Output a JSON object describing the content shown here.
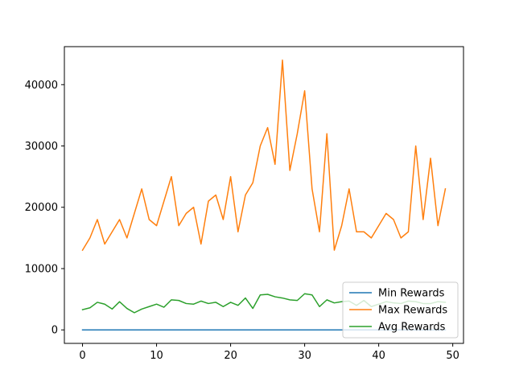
{
  "chart_data": {
    "type": "line",
    "title": "",
    "xlabel": "",
    "ylabel": "",
    "xlim": [
      -2.45,
      51.45
    ],
    "ylim": [
      -2200,
      46200
    ],
    "xticks": [
      0,
      10,
      20,
      30,
      40,
      50
    ],
    "yticks": [
      0,
      10000,
      20000,
      30000,
      40000
    ],
    "xtick_labels": [
      "0",
      "10",
      "20",
      "30",
      "40",
      "50"
    ],
    "ytick_labels": [
      "0",
      "10000",
      "20000",
      "30000",
      "40000"
    ],
    "legend_position": "lower-right",
    "x": [
      0,
      1,
      2,
      3,
      4,
      5,
      6,
      7,
      8,
      9,
      10,
      11,
      12,
      13,
      14,
      15,
      16,
      17,
      18,
      19,
      20,
      21,
      22,
      23,
      24,
      25,
      26,
      27,
      28,
      29,
      30,
      31,
      32,
      33,
      34,
      35,
      36,
      37,
      38,
      39,
      40,
      41,
      42,
      43,
      44,
      45,
      46,
      47,
      48,
      49
    ],
    "series": [
      {
        "name": "Min Rewards",
        "color": "#1f77b4",
        "values": [
          0,
          0,
          0,
          0,
          0,
          0,
          0,
          0,
          0,
          0,
          0,
          0,
          0,
          0,
          0,
          0,
          0,
          0,
          0,
          0,
          0,
          0,
          0,
          0,
          0,
          0,
          0,
          0,
          0,
          0,
          0,
          0,
          0,
          0,
          0,
          0,
          0,
          0,
          0,
          0,
          0,
          0,
          0,
          0,
          0,
          0,
          0,
          0,
          0,
          0
        ]
      },
      {
        "name": "Max Rewards",
        "color": "#ff7f0e",
        "values": [
          13000,
          15000,
          18000,
          14000,
          16000,
          18000,
          15000,
          19000,
          23000,
          18000,
          17000,
          21000,
          25000,
          17000,
          19000,
          20000,
          14000,
          21000,
          22000,
          18000,
          25000,
          16000,
          22000,
          24000,
          30000,
          33000,
          27000,
          44000,
          26000,
          32000,
          39000,
          23000,
          16000,
          32000,
          13000,
          17000,
          23000,
          16000,
          16000,
          15000,
          17000,
          19000,
          18000,
          15000,
          16000,
          30000,
          18000,
          28000,
          17000,
          23000
        ]
      },
      {
        "name": "Avg Rewards",
        "color": "#2ca02c",
        "values": [
          3300,
          3600,
          4500,
          4200,
          3400,
          4600,
          3500,
          2800,
          3400,
          3800,
          4200,
          3700,
          4900,
          4800,
          4300,
          4200,
          4700,
          4300,
          4500,
          3800,
          4500,
          4000,
          5200,
          3500,
          5700,
          5800,
          5400,
          5200,
          4900,
          4800,
          5900,
          5700,
          3800,
          4900,
          4400,
          4600,
          4700,
          4000,
          4800,
          3800,
          4200,
          4600,
          4400,
          4300,
          4700,
          4600,
          4300,
          4300,
          4600,
          4500
        ]
      }
    ]
  }
}
